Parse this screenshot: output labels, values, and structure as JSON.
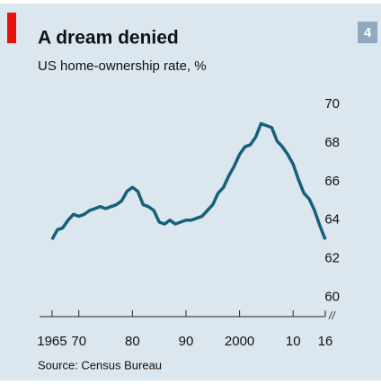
{
  "chart_data": {
    "type": "line",
    "badge": "4",
    "title": "A dream denied",
    "subtitle": "US home-ownership rate, %",
    "source": "Source: Census Bureau",
    "x": [
      1965,
      1966,
      1967,
      1968,
      1969,
      1970,
      1971,
      1972,
      1973,
      1974,
      1975,
      1976,
      1977,
      1978,
      1979,
      1980,
      1981,
      1982,
      1983,
      1984,
      1985,
      1986,
      1987,
      1988,
      1989,
      1990,
      1991,
      1992,
      1993,
      1994,
      1995,
      1996,
      1997,
      1998,
      1999,
      2000,
      2001,
      2002,
      2003,
      2004,
      2005,
      2006,
      2007,
      2008,
      2009,
      2010,
      2011,
      2012,
      2013,
      2014,
      2015,
      2016
    ],
    "series": [
      {
        "name": "Home-ownership rate",
        "color": "#17607a",
        "values": [
          63.0,
          63.5,
          63.6,
          64.0,
          64.3,
          64.2,
          64.3,
          64.5,
          64.6,
          64.7,
          64.6,
          64.7,
          64.8,
          65.0,
          65.5,
          65.7,
          65.5,
          64.8,
          64.7,
          64.5,
          63.9,
          63.8,
          64.0,
          63.8,
          63.9,
          64.0,
          64.0,
          64.1,
          64.2,
          64.5,
          64.8,
          65.4,
          65.7,
          66.3,
          66.8,
          67.4,
          67.8,
          67.9,
          68.3,
          69.0,
          68.9,
          68.8,
          68.1,
          67.8,
          67.4,
          66.9,
          66.1,
          65.4,
          65.1,
          64.5,
          63.7,
          63.0
        ]
      }
    ],
    "xlim": [
      1963,
      2016
    ],
    "xticks": [
      {
        "value": 1965,
        "label": "1965"
      },
      {
        "value": 1970,
        "label": "70"
      },
      {
        "value": 1980,
        "label": "80"
      },
      {
        "value": 1990,
        "label": "90"
      },
      {
        "value": 2000,
        "label": "2000"
      },
      {
        "value": 2010,
        "label": "10"
      },
      {
        "value": 2016,
        "label": "16"
      }
    ],
    "ylim": [
      59,
      70
    ],
    "yticks": [
      60,
      62,
      64,
      66,
      68,
      70
    ],
    "grid": false
  }
}
